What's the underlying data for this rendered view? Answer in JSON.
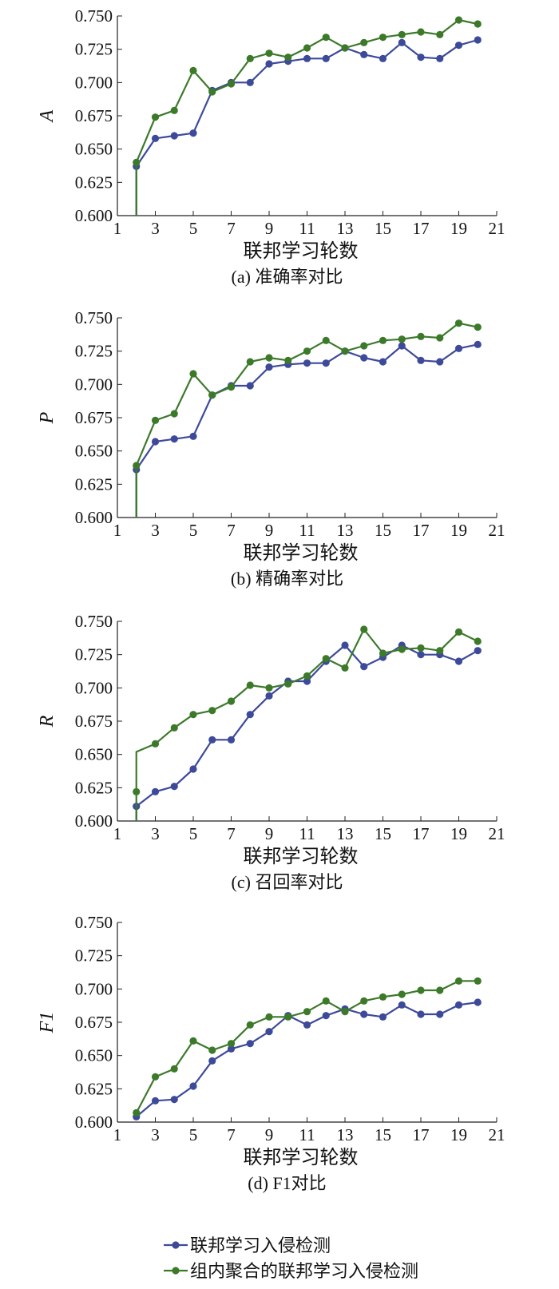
{
  "legend": {
    "items": [
      {
        "label": "联邦学习入侵检测",
        "color": "#3d4a9a"
      },
      {
        "label": "组内聚合的联邦学习入侵检测",
        "color": "#3c7a2a"
      }
    ]
  },
  "chart_data": [
    {
      "type": "line",
      "caption": "(a) 准确率对比",
      "xlabel": "联邦学习轮数",
      "ylabel": "A",
      "xlim": [
        1,
        21
      ],
      "ylim": [
        0.6,
        0.75
      ],
      "xticks": [
        "1",
        "3",
        "5",
        "7",
        "9",
        "11",
        "13",
        "15",
        "17",
        "19",
        "21"
      ],
      "yticks": [
        "0.600",
        "0.625",
        "0.650",
        "0.675",
        "0.700",
        "0.725",
        "0.750"
      ],
      "x": [
        2,
        3,
        4,
        5,
        6,
        7,
        8,
        9,
        10,
        11,
        12,
        13,
        14,
        15,
        16,
        17,
        18,
        19,
        20
      ],
      "series": [
        {
          "name": "联邦学习入侵检测",
          "values": [
            0.637,
            0.658,
            0.66,
            0.662,
            0.694,
            0.7,
            0.7,
            0.714,
            0.716,
            0.718,
            0.718,
            0.726,
            0.721,
            0.718,
            0.73,
            0.719,
            0.718,
            0.728,
            0.732
          ]
        },
        {
          "name": "组内聚合的联邦学习入侵检测",
          "values": [
            0.64,
            0.674,
            0.679,
            0.709,
            0.693,
            0.699,
            0.718,
            0.722,
            0.719,
            0.726,
            0.734,
            0.726,
            0.73,
            0.734,
            0.736,
            0.738,
            0.736,
            0.747,
            0.744
          ]
        }
      ]
    },
    {
      "type": "line",
      "caption": "(b) 精确率对比",
      "xlabel": "联邦学习轮数",
      "ylabel": "P",
      "xlim": [
        1,
        21
      ],
      "ylim": [
        0.6,
        0.75
      ],
      "xticks": [
        "1",
        "3",
        "5",
        "7",
        "9",
        "11",
        "13",
        "15",
        "17",
        "19",
        "21"
      ],
      "yticks": [
        "0.600",
        "0.625",
        "0.650",
        "0.675",
        "0.700",
        "0.725",
        "0.750"
      ],
      "x": [
        2,
        3,
        4,
        5,
        6,
        7,
        8,
        9,
        10,
        11,
        12,
        13,
        14,
        15,
        16,
        17,
        18,
        19,
        20
      ],
      "series": [
        {
          "name": "联邦学习入侵检测",
          "values": [
            0.636,
            0.657,
            0.659,
            0.661,
            0.692,
            0.699,
            0.699,
            0.713,
            0.715,
            0.716,
            0.716,
            0.725,
            0.72,
            0.717,
            0.729,
            0.718,
            0.717,
            0.727,
            0.73
          ]
        },
        {
          "name": "组内聚合的联邦学习入侵检测",
          "values": [
            0.639,
            0.673,
            0.678,
            0.708,
            0.692,
            0.698,
            0.717,
            0.72,
            0.718,
            0.725,
            0.733,
            0.725,
            0.729,
            0.733,
            0.734,
            0.736,
            0.735,
            0.746,
            0.743
          ]
        }
      ]
    },
    {
      "type": "line",
      "caption": "(c) 召回率对比",
      "xlabel": "联邦学习轮数",
      "ylabel": "R",
      "xlim": [
        1,
        21
      ],
      "ylim": [
        0.6,
        0.75
      ],
      "xticks": [
        "1",
        "3",
        "5",
        "7",
        "9",
        "11",
        "13",
        "15",
        "17",
        "19",
        "21"
      ],
      "yticks": [
        "0.600",
        "0.625",
        "0.650",
        "0.675",
        "0.700",
        "0.725",
        "0.750"
      ],
      "x": [
        2,
        3,
        4,
        5,
        6,
        7,
        8,
        9,
        10,
        11,
        12,
        13,
        14,
        15,
        16,
        17,
        18,
        19,
        20
      ],
      "series": [
        {
          "name": "联邦学习入侵检测",
          "values": [
            0.611,
            0.622,
            0.626,
            0.639,
            0.661,
            0.661,
            0.68,
            0.694,
            0.705,
            0.705,
            0.72,
            0.732,
            0.716,
            0.723,
            0.732,
            0.725,
            0.725,
            0.72,
            0.728
          ]
        },
        {
          "name": "组内聚合的联邦学习入侵检测",
          "values": [
            0.622,
            0.658,
            0.67,
            0.68,
            0.683,
            0.69,
            0.702,
            0.7,
            0.703,
            0.709,
            0.722,
            0.715,
            0.744,
            0.726,
            0.729,
            0.73,
            0.728,
            0.742,
            0.735
          ]
        }
      ]
    },
    {
      "type": "line",
      "caption": "(d) F1对比",
      "xlabel": "联邦学习轮数",
      "ylabel": "F1",
      "xlim": [
        1,
        21
      ],
      "ylim": [
        0.6,
        0.75
      ],
      "xticks": [
        "1",
        "3",
        "5",
        "7",
        "9",
        "11",
        "13",
        "15",
        "17",
        "19",
        "21"
      ],
      "yticks": [
        "0.600",
        "0.625",
        "0.650",
        "0.675",
        "0.700",
        "0.725",
        "0.750"
      ],
      "x": [
        2,
        3,
        4,
        5,
        6,
        7,
        8,
        9,
        10,
        11,
        12,
        13,
        14,
        15,
        16,
        17,
        18,
        19,
        20
      ],
      "series": [
        {
          "name": "联邦学习入侵检测",
          "values": [
            0.604,
            0.616,
            0.617,
            0.627,
            0.646,
            0.655,
            0.659,
            0.668,
            0.68,
            0.673,
            0.68,
            0.685,
            0.681,
            0.679,
            0.688,
            0.681,
            0.681,
            0.688,
            0.69
          ]
        },
        {
          "name": "组内聚合的联邦学习入侵检测",
          "values": [
            0.607,
            0.634,
            0.64,
            0.661,
            0.654,
            0.659,
            0.673,
            0.679,
            0.679,
            0.683,
            0.691,
            0.683,
            0.691,
            0.694,
            0.696,
            0.699,
            0.699,
            0.706,
            0.706
          ]
        }
      ]
    }
  ]
}
